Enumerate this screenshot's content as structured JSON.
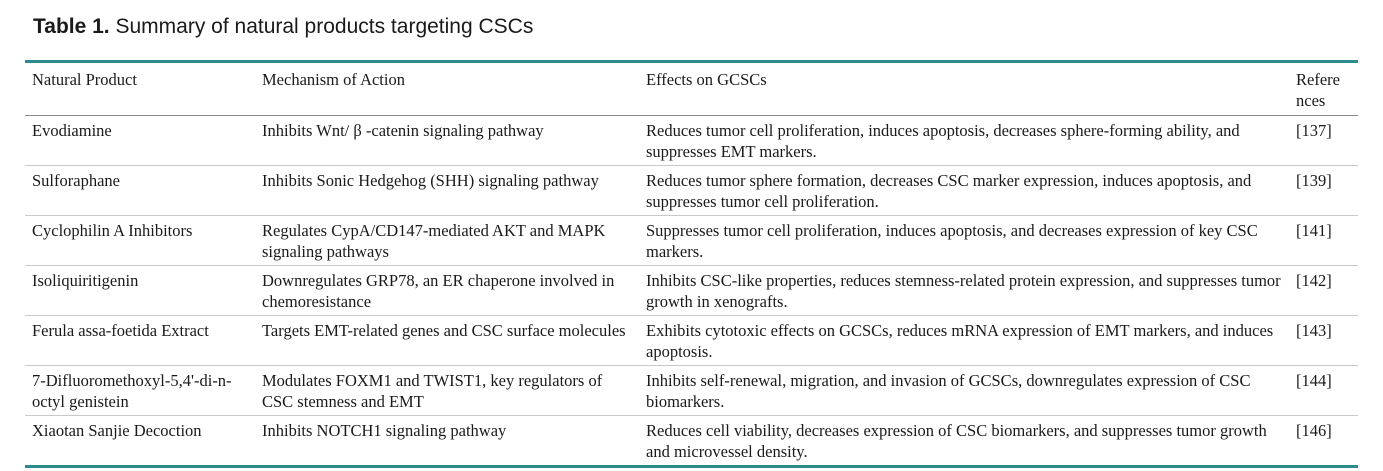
{
  "caption": {
    "label": "Table 1.",
    "title": "Summary of natural products targeting CSCs"
  },
  "table": {
    "headers": [
      "Natural Product",
      "Mechanism of Action",
      "Effects on GCSCs",
      "Refere nces"
    ],
    "rows": [
      [
        "Evodiamine",
        "Inhibits Wnt/ β -catenin signaling pathway",
        "Reduces tumor cell proliferation, induces apoptosis, decreases sphere-forming ability, and suppresses EMT markers.",
        "[137]"
      ],
      [
        "Sulforaphane",
        "Inhibits Sonic Hedgehog (SHH) signaling pathway",
        "Reduces tumor sphere formation, decreases CSC marker expression, induces apoptosis, and suppresses tumor cell proliferation.",
        "[139]"
      ],
      [
        "Cyclophilin A Inhibitors",
        "Regulates CypA/CD147-mediated AKT and MAPK signaling pathways",
        "Suppresses tumor cell proliferation, induces apoptosis, and decreases expression of key CSC markers.",
        "[141]"
      ],
      [
        "Isoliquiritigenin",
        "Downregulates GRP78, an ER chaperone involved in chemoresistance",
        "Inhibits CSC-like properties, reduces stemness-related protein expression, and suppresses tumor growth in xenografts.",
        "[142]"
      ],
      [
        "Ferula assa-foetida Extract",
        "Targets EMT-related genes and CSC surface molecules",
        "Exhibits cytotoxic effects on GCSCs, reduces mRNA expression of EMT markers, and induces apoptosis.",
        "[143]"
      ],
      [
        "7-Difluoromethoxyl-5,4'-di-n-octyl genistein",
        "Modulates FOXM1 and TWIST1, key regulators of CSC stemness and EMT",
        "Inhibits self-renewal, migration, and invasion of GCSCs, downregulates expression of CSC biomarkers.",
        "[144]"
      ],
      [
        "Xiaotan Sanjie Decoction",
        "Inhibits NOTCH1 signaling pathway",
        "Reduces cell viability, decreases expression of CSC biomarkers, and suppresses tumor growth and microvessel density.",
        "[146]"
      ]
    ]
  },
  "colors": {
    "rule": "#2e8b8b",
    "text": "#1a1a1a"
  }
}
